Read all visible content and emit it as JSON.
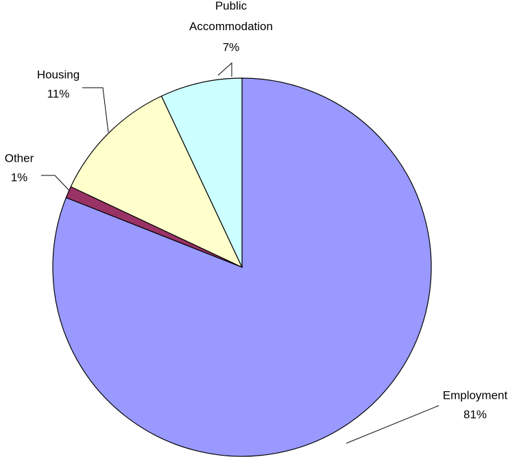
{
  "chart_data": {
    "type": "pie",
    "categories": [
      "Employment",
      "Other",
      "Housing",
      "Public Accommodation"
    ],
    "values": [
      81,
      1,
      11,
      7
    ],
    "value_labels": [
      "81%",
      "1%",
      "11%",
      "7%"
    ],
    "colors": [
      "#9999ff",
      "#993366",
      "#ffffcc",
      "#ccffff"
    ]
  }
}
